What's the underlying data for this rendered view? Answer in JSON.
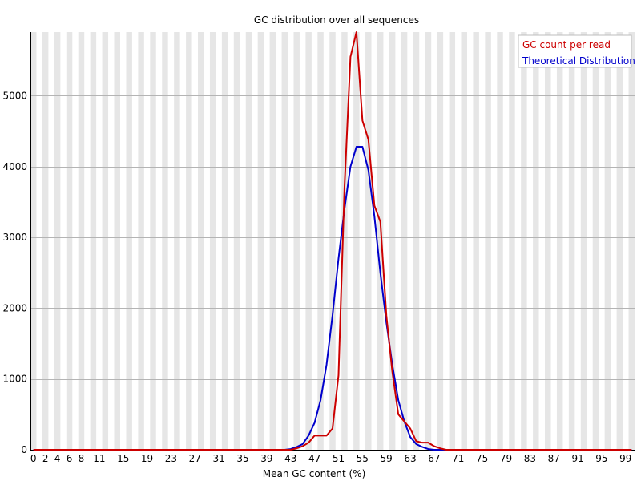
{
  "chart_data": {
    "type": "line",
    "title": "GC distribution over all sequences",
    "xlabel": "Mean GC content (%)",
    "ylabel": "",
    "x_categories": [
      "0",
      "1",
      "2",
      "3",
      "4",
      "5",
      "6",
      "7",
      "8",
      "9",
      "10",
      "11",
      "12",
      "13",
      "14",
      "15",
      "16",
      "17",
      "18",
      "19",
      "20",
      "21",
      "22",
      "23",
      "24",
      "25",
      "26",
      "27",
      "28",
      "29",
      "30",
      "31",
      "32",
      "33",
      "34",
      "35",
      "36",
      "37",
      "38",
      "39",
      "40",
      "41",
      "42",
      "43",
      "44",
      "45",
      "46",
      "47",
      "48",
      "49",
      "50",
      "51",
      "52",
      "53",
      "54",
      "55",
      "56",
      "57",
      "58",
      "59",
      "60",
      "61",
      "62",
      "63",
      "64",
      "65",
      "66",
      "67",
      "68",
      "69",
      "70",
      "71",
      "72",
      "73",
      "74",
      "75",
      "76",
      "77",
      "78",
      "79",
      "80",
      "81",
      "82",
      "83",
      "84",
      "85",
      "86",
      "87",
      "88",
      "89",
      "90",
      "91",
      "92",
      "93",
      "94",
      "95",
      "96",
      "97",
      "98",
      "99",
      "100"
    ],
    "x_tick_labels": [
      {
        "index": 0,
        "label": "0"
      },
      {
        "index": 2,
        "label": "2"
      },
      {
        "index": 4,
        "label": "4"
      },
      {
        "index": 6,
        "label": "6"
      },
      {
        "index": 8,
        "label": "8"
      },
      {
        "index": 11,
        "label": "11"
      },
      {
        "index": 15,
        "label": "15"
      },
      {
        "index": 19,
        "label": "19"
      },
      {
        "index": 23,
        "label": "23"
      },
      {
        "index": 27,
        "label": "27"
      },
      {
        "index": 31,
        "label": "31"
      },
      {
        "index": 35,
        "label": "35"
      },
      {
        "index": 39,
        "label": "39"
      },
      {
        "index": 43,
        "label": "43"
      },
      {
        "index": 47,
        "label": "47"
      },
      {
        "index": 51,
        "label": "51"
      },
      {
        "index": 55,
        "label": "55"
      },
      {
        "index": 59,
        "label": "59"
      },
      {
        "index": 63,
        "label": "63"
      },
      {
        "index": 67,
        "label": "67"
      },
      {
        "index": 71,
        "label": "71"
      },
      {
        "index": 75,
        "label": "75"
      },
      {
        "index": 79,
        "label": "79"
      },
      {
        "index": 83,
        "label": "83"
      },
      {
        "index": 87,
        "label": "87"
      },
      {
        "index": 91,
        "label": "91"
      },
      {
        "index": 95,
        "label": "95"
      },
      {
        "index": 99,
        "label": "99"
      }
    ],
    "y_ticks": [
      0,
      1000,
      2000,
      3000,
      4000,
      5000
    ],
    "ylim": [
      0,
      5900
    ],
    "grid": true,
    "legend_position": "top-right",
    "series": [
      {
        "name": "GC count per read",
        "color": "#cc0000",
        "values": [
          0,
          0,
          0,
          0,
          0,
          0,
          0,
          0,
          0,
          0,
          0,
          0,
          0,
          0,
          0,
          0,
          0,
          0,
          0,
          0,
          0,
          0,
          0,
          0,
          0,
          0,
          0,
          0,
          0,
          0,
          0,
          0,
          0,
          0,
          0,
          0,
          0,
          0,
          0,
          0,
          0,
          0,
          0,
          0,
          20,
          50,
          100,
          200,
          200,
          200,
          300,
          1050,
          3700,
          5550,
          5900,
          4650,
          4380,
          3450,
          3220,
          1900,
          1100,
          500,
          400,
          300,
          120,
          100,
          100,
          50,
          20,
          0,
          0,
          0,
          0,
          0,
          0,
          0,
          0,
          0,
          0,
          0,
          0,
          0,
          0,
          0,
          0,
          0,
          0,
          0,
          0,
          0,
          0,
          0,
          0,
          0,
          0,
          0,
          0,
          0,
          0,
          0,
          0
        ]
      },
      {
        "name": "Theoretical Distribution",
        "color": "#0000cc",
        "values": [
          0,
          0,
          0,
          0,
          0,
          0,
          0,
          0,
          0,
          0,
          0,
          0,
          0,
          0,
          0,
          0,
          0,
          0,
          0,
          0,
          0,
          0,
          0,
          0,
          0,
          0,
          0,
          0,
          0,
          0,
          0,
          0,
          0,
          0,
          0,
          0,
          0,
          0,
          0,
          0,
          0,
          0,
          0,
          10,
          40,
          80,
          200,
          380,
          700,
          1200,
          1900,
          2700,
          3400,
          4000,
          4280,
          4280,
          3950,
          3300,
          2500,
          1800,
          1200,
          700,
          400,
          180,
          80,
          40,
          10,
          0,
          0,
          0,
          0,
          0,
          0,
          0,
          0,
          0,
          0,
          0,
          0,
          0,
          0,
          0,
          0,
          0,
          0,
          0,
          0,
          0,
          0,
          0,
          0,
          0,
          0,
          0,
          0,
          0,
          0,
          0,
          0,
          0,
          0
        ]
      }
    ]
  }
}
